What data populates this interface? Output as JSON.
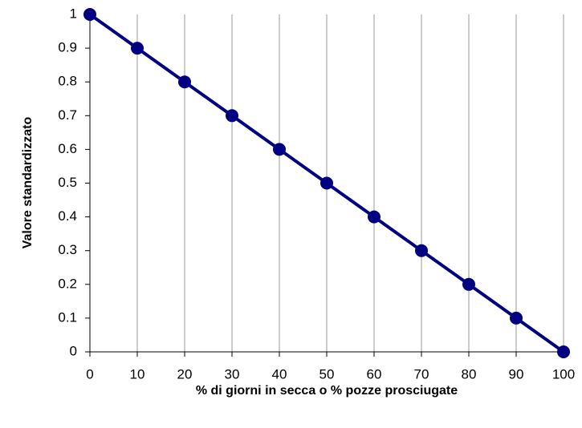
{
  "chart_data": {
    "type": "line",
    "x_label": "% di giorni in secca o % pozze prosciugate",
    "y_label": "Valore standardizzato",
    "x": [
      0,
      10,
      20,
      30,
      40,
      50,
      60,
      70,
      80,
      90,
      100
    ],
    "series": [
      {
        "name": "Valore standardizzato",
        "color": "#000080",
        "values": [
          1,
          0.9,
          0.8,
          0.7,
          0.6,
          0.5,
          0.4,
          0.3,
          0.2,
          0.1,
          0
        ]
      }
    ],
    "xlim": [
      0,
      100
    ],
    "xticks": [
      0,
      10,
      20,
      30,
      40,
      50,
      60,
      70,
      80,
      90,
      100
    ],
    "ylim": [
      0,
      1
    ],
    "yticks": [
      0,
      0.1,
      0.2,
      0.3,
      0.4,
      0.5,
      0.6,
      0.7,
      0.8,
      0.9,
      1
    ],
    "grid": "x",
    "legend": false
  }
}
